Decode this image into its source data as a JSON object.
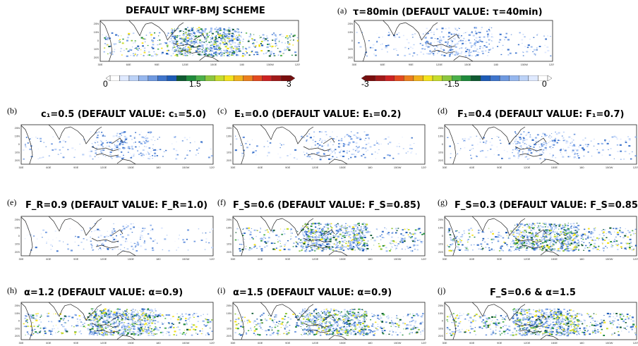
{
  "colorbars": {
    "positive": {
      "min_label": "0",
      "mid_label": "1.5",
      "max_label": "3",
      "colors": [
        "#ffffff",
        "#dfe9ff",
        "#bcd2f7",
        "#96b7ee",
        "#6f99e0",
        "#3f75cc",
        "#1d5bb6",
        "#0f5a32",
        "#1f8a3c",
        "#4cb04a",
        "#8dc63f",
        "#c7dc2c",
        "#f4e21c",
        "#f2b21b",
        "#ec7f1d",
        "#e34a1f",
        "#cc2222",
        "#a11919",
        "#7a0e0e"
      ]
    },
    "negative": {
      "min_label": "-3",
      "mid_label": "-1.5",
      "max_label": "0",
      "colors": [
        "#7a0e0e",
        "#a11919",
        "#cc2222",
        "#e34a1f",
        "#ec7f1d",
        "#f2b21b",
        "#f4e21c",
        "#c7dc2c",
        "#8dc63f",
        "#4cb04a",
        "#1f8a3c",
        "#0f5a32",
        "#1d5bb6",
        "#3f75cc",
        "#6f99e0",
        "#96b7ee",
        "#bcd2f7",
        "#dfe9ff",
        "#ffffff"
      ]
    }
  },
  "panels": [
    {
      "id": "default",
      "letter": "",
      "title": "DEFAULT WRF-BMJ SCHEME",
      "intensity": 1.0,
      "sign": "pos"
    },
    {
      "id": "a",
      "letter": "(a)",
      "title": "τ=80min (DEFAULT VALUE: τ=40min)",
      "intensity": 0.35,
      "sign": "neg"
    },
    {
      "id": "b",
      "letter": "(b)",
      "title": "c₁=0.5 (DEFAULT VALUE: c₁=5.0)",
      "intensity": 0.25,
      "sign": "neg"
    },
    {
      "id": "c",
      "letter": "(c)",
      "title": "E₁=0.0 (DEFAULT VALUE: E₁=0.2)",
      "intensity": 0.2,
      "sign": "neg"
    },
    {
      "id": "d",
      "letter": "(d)",
      "title": "F₁=0.4 (DEFAULT VALUE: F₁=0.7)",
      "intensity": 0.3,
      "sign": "neg"
    },
    {
      "id": "e",
      "letter": "(e)",
      "title": "F_R=0.9 (DEFAULT VALUE: F_R=1.0)",
      "intensity": 0.15,
      "sign": "neg"
    },
    {
      "id": "f",
      "letter": "(f)",
      "title": "F_S=0.6 (DEFAULT VALUE: F_S=0.85)",
      "intensity": 0.9,
      "sign": "pos"
    },
    {
      "id": "g",
      "letter": "(g)",
      "title": "F_S=0.3 (DEFAULT VALUE: F_S=0.85)",
      "intensity": 1.0,
      "sign": "pos"
    },
    {
      "id": "h",
      "letter": "(h)",
      "title": "α=1.2 (DEFAULT VALUE: α=0.9)",
      "intensity": 1.0,
      "sign": "pos"
    },
    {
      "id": "i",
      "letter": "(i)",
      "title": "α=1.5 (DEFAULT VALUE: α=0.9)",
      "intensity": 1.0,
      "sign": "pos"
    },
    {
      "id": "j",
      "letter": "(j)",
      "title": "F_S=0.6 & α=1.5",
      "intensity": 1.0,
      "sign": "pos"
    }
  ],
  "chart_data": {
    "type": "heatmap",
    "x_ticks": [
      "30E",
      "60E",
      "90E",
      "120E",
      "150E",
      "180",
      "150W",
      "120W"
    ],
    "y_ticks": [
      "20N",
      "10N",
      "0",
      "10S",
      "20S"
    ],
    "colorbar_ranges": {
      "positive": [
        0,
        3
      ],
      "negative": [
        -3,
        0
      ]
    }
  }
}
